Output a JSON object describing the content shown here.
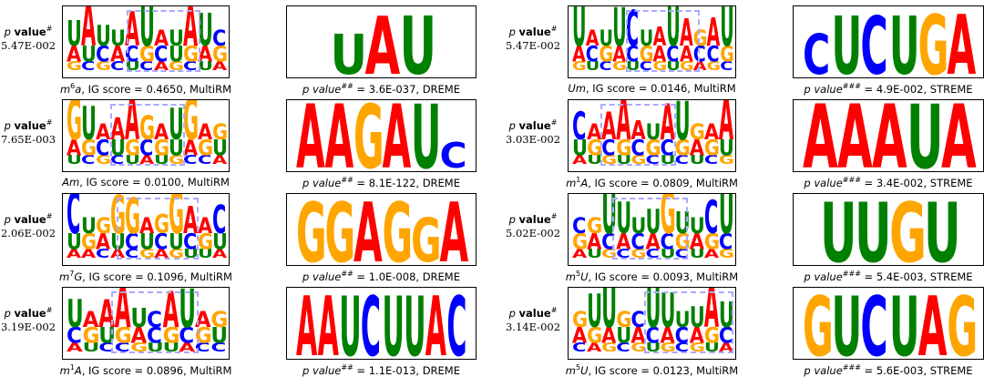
{
  "pvalue_label": "p value",
  "rows": [
    {
      "left": {
        "pvalue": "5.47E-002",
        "ig_caption": {
          "mod": "m",
          "sup": "6",
          "base": "a",
          "rest": ", IG score = 0.4650, MultiRM"
        },
        "ig_logo": [
          "UAUUAUAUAUC",
          "AUCACGCUGAG",
          "GCGCUCAGCUA"
        ],
        "motif_caption": {
          "prefix": "p value",
          "sup": "##",
          "rest": " = 3.6E-037, DREME"
        },
        "motif_logo": "UAU"
      },
      "right": {
        "pvalue": "5.47E-002",
        "ig_caption": {
          "mod": "Um",
          "sup": "",
          "base": "",
          "rest": ", IG score = 0.0146, MultiRM"
        },
        "ig_logo": [
          "UAUUCUAUAGAU",
          "ACGACGACACCG",
          "GUCGUCGUGAGC"
        ],
        "motif_caption": {
          "prefix": "p value",
          "sup": "###",
          "rest": " = 4.9E-002, STREME"
        },
        "motif_logo": "CUCUGA"
      }
    },
    {
      "left": {
        "pvalue": "7.65E-003",
        "ig_caption": {
          "mod": "Am",
          "sup": "",
          "base": "",
          "rest": ", IG score = 0.0100, MultiRM"
        },
        "ig_logo": [
          "GUAAAGAUGAG",
          "AGCUGCGUAGU",
          "UCGCUAUGCCA"
        ],
        "motif_caption": {
          "prefix": "p value",
          "sup": "##",
          "rest": " = 8.1E-122, DREME"
        },
        "motif_logo": "AAGAUC"
      },
      "right": {
        "pvalue": "3.03E-002",
        "ig_caption": {
          "mod": "m",
          "sup": "1",
          "base": "A",
          "rest": ", IG score = 0.0809, MultiRM"
        },
        "ig_logo": [
          "CAAAAUAUGAA",
          "UGCGCGCGAGU",
          "AUGUGCUCUCG"
        ],
        "motif_caption": {
          "prefix": "p value",
          "sup": "###",
          "rest": " = 3.4E-002, STREME"
        },
        "motif_logo": "AAAUA"
      }
    },
    {
      "left": {
        "pvalue": "2.06E-002",
        "ig_caption": {
          "mod": "m",
          "sup": "7",
          "base": "G",
          "rest": ", IG score = 0.1096, MultiRM"
        },
        "ig_logo": [
          "CUGGGAGGAAC",
          "UGAUCUCUCGU",
          "AACACGAGUUA"
        ],
        "motif_caption": {
          "prefix": "p value",
          "sup": "##",
          "rest": " = 1.0E-008, DREME"
        },
        "motif_logo": "GGAGGA"
      },
      "right": {
        "pvalue": "5.02E-002",
        "ig_caption": {
          "mod": "m",
          "sup": "5",
          "base": "U",
          "rest": ", IG score = 0.0093, MultiRM"
        },
        "ig_logo": [
          "CGUUUUGUUCU",
          "GACACACGAGC",
          "AUGCGCUCUAG"
        ],
        "motif_caption": {
          "prefix": "p value",
          "sup": "###",
          "rest": " = 5.4E-003, STREME"
        },
        "motif_logo": "UUGU"
      }
    },
    {
      "left": {
        "pvalue": "3.19E-002",
        "ig_caption": {
          "mod": "m",
          "sup": "1",
          "base": "A",
          "rest": ", IG score = 0.0896, MultiRM"
        },
        "ig_logo": [
          "UAAAUCAUAG",
          "CGUGACGCGU",
          "AUCCGUUACC"
        ],
        "motif_caption": {
          "prefix": "p value",
          "sup": "##",
          "rest": " = 1.1E-013, DREME"
        },
        "motif_logo": "AAUCUUAC"
      },
      "right": {
        "pvalue": "3.14E-002",
        "ig_caption": {
          "mod": "m",
          "sup": "5",
          "base": "U",
          "rest": ", IG score = 0.0123, MultiRM"
        },
        "ig_logo": [
          "GUUGCUUUUAU",
          "AGAUACACAGC",
          "CAGCGUGCGUA"
        ],
        "motif_caption": {
          "prefix": "p value",
          "sup": "###",
          "rest": " = 5.6E-003, STREME"
        },
        "motif_logo": "GUCUAG"
      }
    }
  ],
  "colors": {
    "A": "#ff0000",
    "C": "#0000ff",
    "G": "#ffa500",
    "U": "#008000",
    "highlight": "#a9a9ff"
  }
}
